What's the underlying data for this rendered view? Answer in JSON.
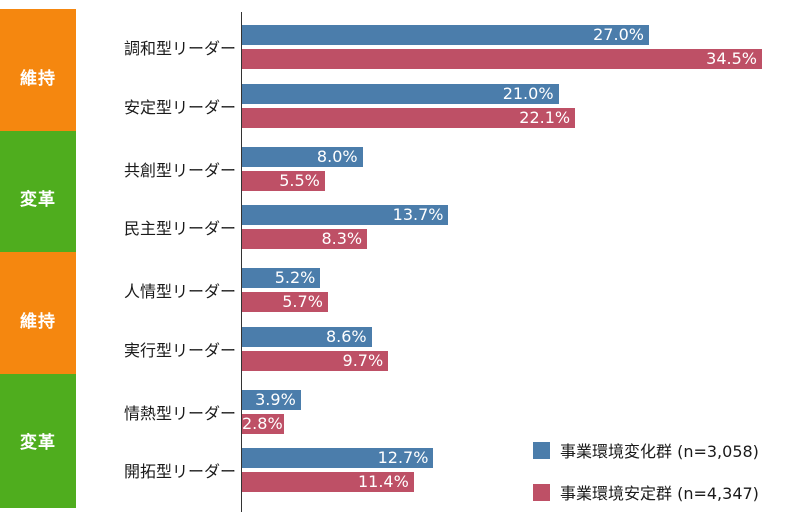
{
  "colors": {
    "iji": "#F5870F",
    "henkaku": "#4FAD1E",
    "series_change": "#4B7DAB",
    "series_stable": "#BE5066"
  },
  "groups": [
    {
      "label": "維持",
      "kind": "iji"
    },
    {
      "label": "変革",
      "kind": "henkaku"
    },
    {
      "label": "維持",
      "kind": "iji"
    },
    {
      "label": "変革",
      "kind": "henkaku"
    }
  ],
  "chart_data": {
    "type": "bar",
    "orientation": "horizontal",
    "categories": [
      "調和型リーダー",
      "安定型リーダー",
      "共創型リーダー",
      "民主型リーダー",
      "人情型リーダー",
      "実行型リーダー",
      "情熱型リーダー",
      "開拓型リーダー"
    ],
    "series": [
      {
        "name": "事業環境変化群 (n=3,058)",
        "values": [
          27.0,
          21.0,
          8.0,
          13.7,
          5.2,
          8.6,
          3.9,
          12.7
        ],
        "labels": [
          "27.0%",
          "21.0%",
          "8.0%",
          "13.7%",
          "5.2%",
          "8.6%",
          "3.9%",
          "12.7%"
        ]
      },
      {
        "name": "事業環境安定群 (n=4,347)",
        "values": [
          34.5,
          22.1,
          5.5,
          8.3,
          5.7,
          9.7,
          2.8,
          11.4
        ],
        "labels": [
          "34.5%",
          "22.1%",
          "5.5%",
          "8.3%",
          "5.7%",
          "9.7%",
          "2.8%",
          "11.4%"
        ]
      }
    ],
    "xlim": [
      0,
      34.5
    ],
    "legend_position": "bottom-right",
    "grid": false
  }
}
